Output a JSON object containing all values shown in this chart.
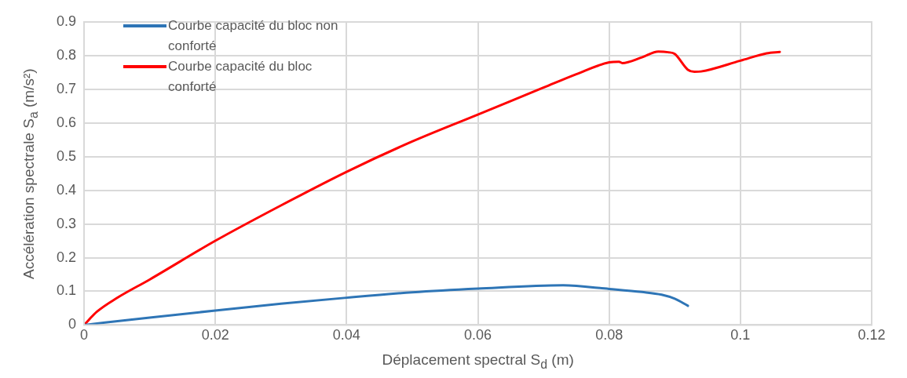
{
  "chart_data": {
    "type": "line",
    "xlabel": "Déplacement spectral S$_{d}$ (m)",
    "ylabel": "Accélération spectrale  S$_{a}$ (m/s²)",
    "xlim": [
      0,
      0.12
    ],
    "xticks": [
      0,
      0.02,
      0.04,
      0.06,
      0.08,
      0.1,
      0.12
    ],
    "ylim": [
      0,
      0.9
    ],
    "yticks": [
      0,
      0.1,
      0.2,
      0.3,
      0.4,
      0.5,
      0.6,
      0.7,
      0.8,
      0.9
    ],
    "grid": true,
    "legend": "top left",
    "marker": "none",
    "line_style": "solid",
    "series": [
      {
        "name": "Courbe capacité du bloc non conforté",
        "color": "#2e75b6",
        "x": [
          0,
          0.01,
          0.02,
          0.03,
          0.04,
          0.05,
          0.06,
          0.073,
          0.08,
          0.085,
          0.088,
          0.09,
          0.092
        ],
        "values": [
          0,
          0.022,
          0.043,
          0.063,
          0.081,
          0.097,
          0.108,
          0.118,
          0.107,
          0.098,
          0.09,
          0.078,
          0.057
        ]
      },
      {
        "name": "Courbe capacité du bloc conforté",
        "color": "#ff0000",
        "x": [
          0,
          0.002,
          0.005,
          0.01,
          0.02,
          0.03,
          0.04,
          0.05,
          0.06,
          0.07,
          0.075,
          0.08,
          0.0815,
          0.082,
          0.085,
          0.0875,
          0.089,
          0.09,
          0.092,
          0.093,
          0.094,
          0.1,
          0.104,
          0.106
        ],
        "values": [
          0,
          0.04,
          0.08,
          0.135,
          0.25,
          0.355,
          0.455,
          0.545,
          0.625,
          0.705,
          0.745,
          0.78,
          0.782,
          0.778,
          0.795,
          0.812,
          0.81,
          0.805,
          0.758,
          0.752,
          0.753,
          0.785,
          0.807,
          0.811
        ]
      }
    ]
  }
}
